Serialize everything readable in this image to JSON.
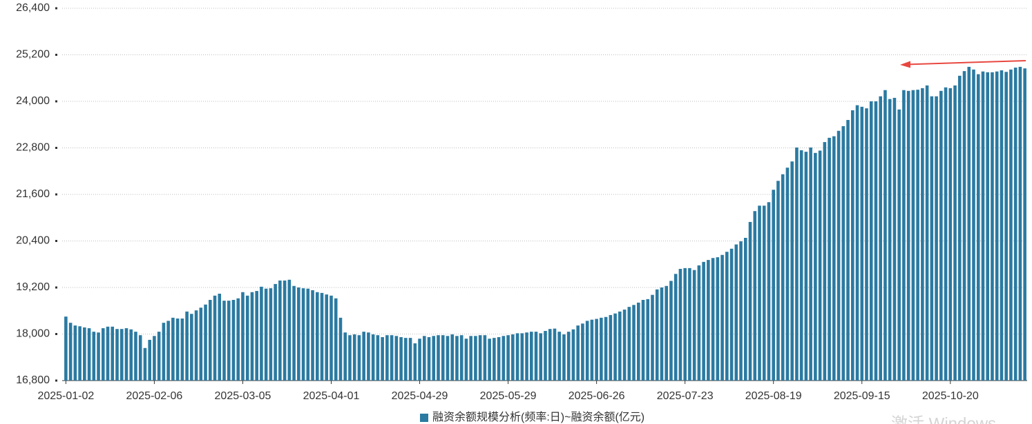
{
  "chart_data": {
    "type": "bar",
    "legend": "融资余额规模分析(频率:日)~融资余额(亿元)",
    "watermark": "激活 Windows",
    "color": "#2b7aa1",
    "grid": true,
    "ylim": [
      16800,
      26400
    ],
    "yticks": [
      {
        "value": 16800,
        "label": "16,800"
      },
      {
        "value": 18000,
        "label": "18,000"
      },
      {
        "value": 19200,
        "label": "19,200"
      },
      {
        "value": 20400,
        "label": "20,400"
      },
      {
        "value": 21600,
        "label": "21,600"
      },
      {
        "value": 22800,
        "label": "22,800"
      },
      {
        "value": 24000,
        "label": "24,000"
      },
      {
        "value": 25200,
        "label": "25,200"
      },
      {
        "value": 26400,
        "label": "26,400"
      }
    ],
    "categories": [
      "2025-01-02",
      null,
      null,
      null,
      null,
      null,
      null,
      null,
      null,
      null,
      null,
      null,
      null,
      null,
      null,
      null,
      null,
      null,
      null,
      "2025-02-06",
      null,
      null,
      null,
      null,
      null,
      null,
      null,
      null,
      null,
      null,
      null,
      null,
      null,
      null,
      null,
      null,
      null,
      null,
      "2025-03-05",
      null,
      null,
      null,
      null,
      null,
      null,
      null,
      null,
      null,
      null,
      null,
      null,
      null,
      null,
      null,
      null,
      null,
      null,
      "2025-04-01",
      null,
      null,
      null,
      null,
      null,
      null,
      null,
      null,
      null,
      null,
      null,
      null,
      null,
      null,
      null,
      null,
      null,
      null,
      "2025-04-29",
      null,
      null,
      null,
      null,
      null,
      null,
      null,
      null,
      null,
      null,
      null,
      null,
      null,
      null,
      null,
      null,
      null,
      null,
      "2025-05-29",
      null,
      null,
      null,
      null,
      null,
      null,
      null,
      null,
      null,
      null,
      null,
      null,
      null,
      null,
      null,
      null,
      null,
      null,
      "2025-06-26",
      null,
      null,
      null,
      null,
      null,
      null,
      null,
      null,
      null,
      null,
      null,
      null,
      null,
      null,
      null,
      null,
      null,
      null,
      "2025-07-23",
      null,
      null,
      null,
      null,
      null,
      null,
      null,
      null,
      null,
      null,
      null,
      null,
      null,
      null,
      null,
      null,
      null,
      null,
      "2025-08-19",
      null,
      null,
      null,
      null,
      null,
      null,
      null,
      null,
      null,
      null,
      null,
      null,
      null,
      null,
      null,
      null,
      null,
      null,
      "2025-09-15",
      null,
      null,
      null,
      null,
      null,
      null,
      null,
      null,
      null,
      null,
      null,
      null,
      null,
      null,
      null,
      null,
      null,
      null,
      "2025-10-20",
      null,
      null,
      null,
      null,
      null,
      null,
      null,
      null,
      null,
      null,
      null,
      null,
      null,
      null,
      null,
      null
    ],
    "values": [
      18450,
      18290,
      18220,
      18200,
      18170,
      18150,
      18060,
      18040,
      18150,
      18190,
      18190,
      18130,
      18130,
      18150,
      18120,
      18060,
      17970,
      17640,
      17850,
      17950,
      18060,
      18290,
      18340,
      18420,
      18400,
      18400,
      18580,
      18520,
      18610,
      18680,
      18760,
      18880,
      18990,
      19040,
      18860,
      18860,
      18880,
      18920,
      19080,
      18990,
      19080,
      19110,
      19220,
      19170,
      19180,
      19290,
      19380,
      19380,
      19400,
      19240,
      19200,
      19180,
      19170,
      19130,
      19080,
      19060,
      19020,
      18990,
      18920,
      18420,
      18040,
      17970,
      17990,
      17970,
      18060,
      18040,
      17990,
      17970,
      17920,
      17970,
      17970,
      17950,
      17920,
      17900,
      17900,
      17760,
      17880,
      17950,
      17920,
      17950,
      17970,
      17970,
      17950,
      17990,
      17950,
      17970,
      17880,
      17950,
      17950,
      17970,
      17970,
      17880,
      17900,
      17920,
      17950,
      17970,
      17990,
      18020,
      18020,
      18040,
      18060,
      18060,
      18020,
      18080,
      18130,
      18140,
      18060,
      17990,
      18060,
      18120,
      18220,
      18270,
      18340,
      18370,
      18390,
      18420,
      18440,
      18490,
      18530,
      18580,
      18630,
      18700,
      18750,
      18810,
      18880,
      18900,
      19010,
      19150,
      19200,
      19240,
      19370,
      19550,
      19680,
      19700,
      19700,
      19650,
      19770,
      19860,
      19910,
      19960,
      19980,
      20040,
      20120,
      20200,
      20310,
      20390,
      20480,
      20890,
      21170,
      21310,
      21310,
      21400,
      21720,
      21950,
      22120,
      22290,
      22450,
      22810,
      22740,
      22700,
      22810,
      22670,
      22730,
      22950,
      23060,
      23100,
      23240,
      23360,
      23520,
      23770,
      23900,
      23860,
      23820,
      24000,
      24000,
      24130,
      24290,
      24060,
      24090,
      23790,
      24290,
      24270,
      24290,
      24300,
      24340,
      24410,
      24130,
      24130,
      24270,
      24360,
      24340,
      24410,
      24660,
      24780,
      24890,
      24820,
      24700,
      24770,
      24750,
      24750,
      24770,
      24800,
      24760,
      24820,
      24870,
      24890,
      24850
    ]
  }
}
